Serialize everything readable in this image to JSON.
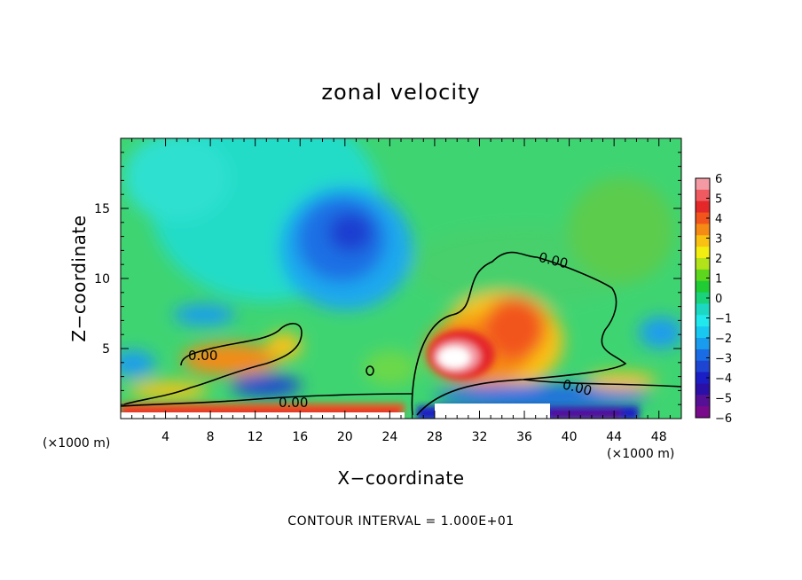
{
  "chart_data": {
    "type": "heatmap",
    "title": "zonal velocity",
    "xlabel": "X−coordinate",
    "ylabel": "Z−coordinate",
    "x_unit": "(×1000 m)",
    "x_unit_right": "(×1000 m)",
    "xlim": [
      0,
      50
    ],
    "ylim": [
      0,
      20
    ],
    "xticks": [
      4,
      8,
      12,
      16,
      20,
      24,
      28,
      32,
      36,
      40,
      44,
      48
    ],
    "xtick_labels": [
      "4",
      "8",
      "12",
      "16",
      "20",
      "24",
      "28",
      "32",
      "36",
      "40",
      "44",
      "48"
    ],
    "yticks": [
      5,
      10,
      15
    ],
    "ytick_labels": [
      "5",
      "10",
      "15"
    ],
    "colorbar": {
      "ticks": [
        6,
        5,
        4,
        3,
        2,
        1,
        0,
        -1,
        -2,
        -3,
        -4,
        -5,
        -6
      ],
      "tick_labels": [
        "6",
        "5",
        "4",
        "3",
        "2",
        "1",
        "0",
        "−1",
        "−2",
        "−3",
        "−4",
        "−5",
        "−6"
      ],
      "colors": [
        "#f49aa4",
        "#ee5a60",
        "#e4282a",
        "#f2541e",
        "#f58a14",
        "#f9c212",
        "#f2ee12",
        "#b2e21a",
        "#5dd61e",
        "#1fcc34",
        "#19d27a",
        "#1cd8c2",
        "#20e8ec",
        "#18c8f0",
        "#1a9cee",
        "#1a6ce4",
        "#1e44d2",
        "#1a1ec4",
        "#2b10a8",
        "#561096",
        "#7a0a8c"
      ]
    },
    "contour_labels": [
      "0.00",
      "0.00",
      "0.00",
      "0.00"
    ],
    "contour_interval": "CONTOUR INTERVAL = 1.000E+01"
  }
}
